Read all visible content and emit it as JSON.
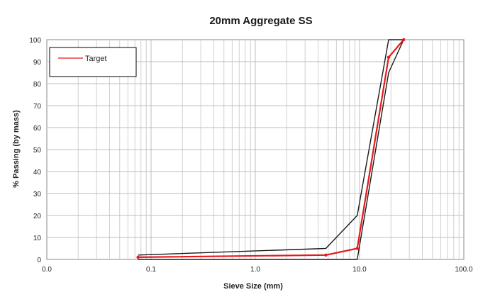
{
  "chart_data": {
    "type": "line",
    "title": "20mm Aggregate SS",
    "xlabel": "Sieve Size (mm)",
    "ylabel": "% Passing (by mass)",
    "x_scale": "log",
    "xlim": [
      0.01,
      100
    ],
    "ylim": [
      0,
      100
    ],
    "x_ticks": [
      0.01,
      0.1,
      1,
      10,
      100
    ],
    "x_tick_labels": [
      "0.0",
      "0.1",
      "1.0",
      "10.0",
      "100.0"
    ],
    "y_ticks": [
      0,
      10,
      20,
      30,
      40,
      50,
      60,
      70,
      80,
      90,
      100
    ],
    "y_tick_labels": [
      "0",
      "10",
      "20",
      "30",
      "40",
      "50",
      "60",
      "70",
      "80",
      "90",
      "100"
    ],
    "grid": true,
    "legend_position": "top-left",
    "series": [
      {
        "name": "Target",
        "color": "#e31a1c",
        "markers": true,
        "x": [
          0.075,
          4.75,
          9.5,
          19,
          26.5
        ],
        "y": [
          1,
          2,
          5,
          92,
          100
        ]
      },
      {
        "color": "#1a1a1a",
        "markers": false,
        "x": [
          0.075,
          4.75,
          9.5,
          19,
          26.5
        ],
        "y": [
          2,
          5,
          20,
          100,
          100
        ]
      },
      {
        "color": "#1a1a1a",
        "markers": false,
        "x": [
          0.075,
          4.75,
          9.5,
          19,
          26.5
        ],
        "y": [
          0,
          0,
          0,
          85,
          100
        ]
      }
    ]
  }
}
